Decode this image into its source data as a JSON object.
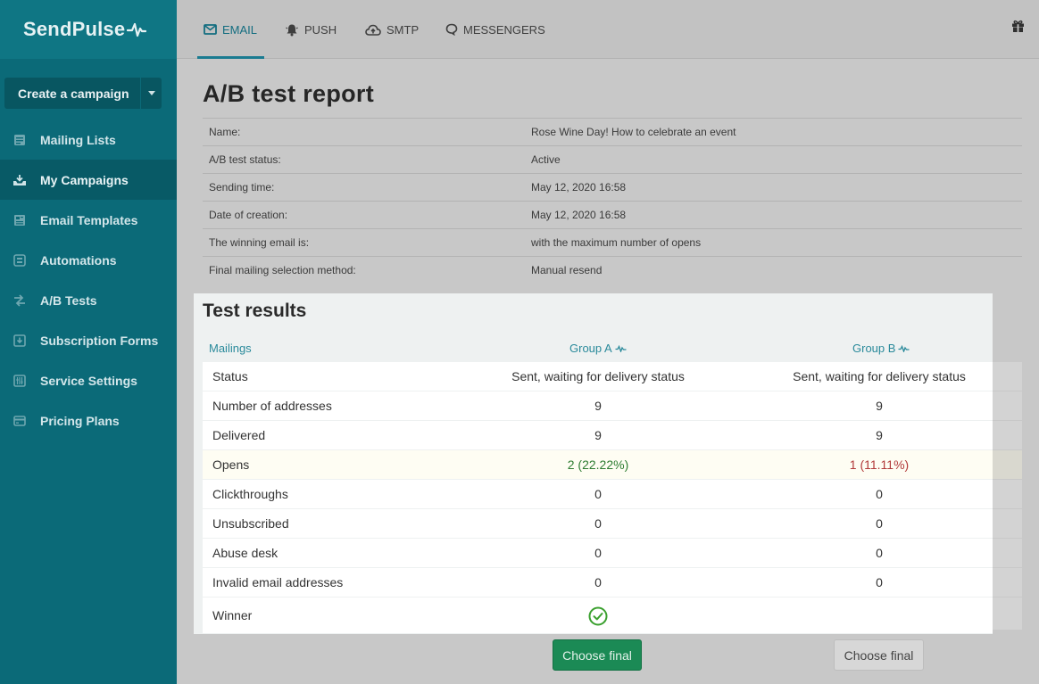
{
  "app": {
    "logo": "SendPulse"
  },
  "sidebar": {
    "create_button": "Create a campaign",
    "items": [
      {
        "label": "Mailing Lists",
        "icon": "list-icon"
      },
      {
        "label": "My Campaigns",
        "icon": "inbox-icon"
      },
      {
        "label": "Email Templates",
        "icon": "template-icon"
      },
      {
        "label": "Automations",
        "icon": "automation-icon"
      },
      {
        "label": "A/B Tests",
        "icon": "ab-test-icon"
      },
      {
        "label": "Subscription Forms",
        "icon": "form-icon"
      },
      {
        "label": "Service Settings",
        "icon": "settings-icon"
      },
      {
        "label": "Pricing Plans",
        "icon": "pricing-icon"
      }
    ],
    "active_index": 1
  },
  "topbar": {
    "tabs": [
      {
        "label": "EMAIL",
        "icon": "envelope-icon"
      },
      {
        "label": "PUSH",
        "icon": "bell-icon"
      },
      {
        "label": "SMTP",
        "icon": "cloud-upload-icon"
      },
      {
        "label": "MESSENGERS",
        "icon": "chat-icon"
      }
    ],
    "active_tab": "EMAIL"
  },
  "report": {
    "title": "A/B test report",
    "info": [
      {
        "label": "Name:",
        "value": "Rose Wine Day! How to celebrate an event"
      },
      {
        "label": "A/B test status:",
        "value": "Active"
      },
      {
        "label": "Sending time:",
        "value": "May 12, 2020 16:58"
      },
      {
        "label": "Date of creation:",
        "value": "May 12, 2020 16:58"
      },
      {
        "label": "The winning email is:",
        "value": "with the maximum number of opens"
      },
      {
        "label": "Final mailing selection method:",
        "value": "Manual resend"
      }
    ]
  },
  "results": {
    "title": "Test results",
    "col_mailings": "Mailings",
    "col_group_a": "Group A",
    "col_group_b": "Group B",
    "rows": [
      {
        "label": "Status",
        "a": "Sent, waiting for delivery status",
        "b": "Sent, waiting for delivery status"
      },
      {
        "label": "Number of addresses",
        "a": "9",
        "b": "9"
      },
      {
        "label": "Delivered",
        "a": "9",
        "b": "9"
      },
      {
        "label": "Opens",
        "a": "2 (22.22%)",
        "b": "1 (11.11%)"
      },
      {
        "label": "Clickthroughs",
        "a": "0",
        "b": "0"
      },
      {
        "label": "Unsubscribed",
        "a": "0",
        "b": "0"
      },
      {
        "label": "Abuse desk",
        "a": "0",
        "b": "0"
      },
      {
        "label": "Invalid email addresses",
        "a": "0",
        "b": "0"
      },
      {
        "label": "Winner",
        "a": "",
        "b": ""
      }
    ],
    "winner": "Group A",
    "choose_final_a": "Choose final",
    "choose_final_b": "Choose final"
  },
  "colors": {
    "sidebar": "#0b6a78",
    "accent": "#1a7b91",
    "success": "#1b8a55",
    "winner_check": "#3aa02e"
  }
}
